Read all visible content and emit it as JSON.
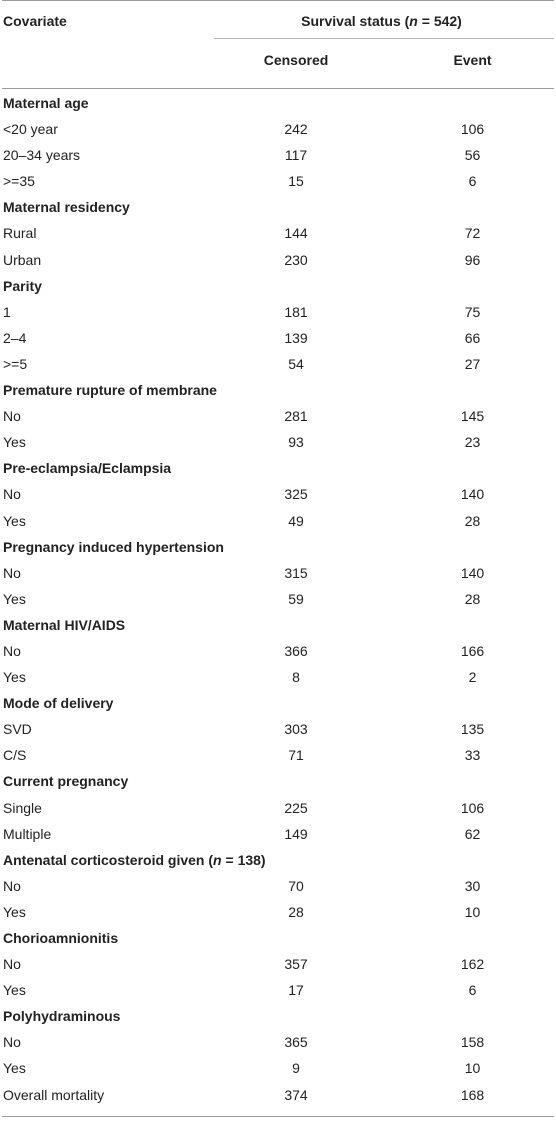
{
  "header": {
    "covariate": "Covariate",
    "survival_prefix": "Survival status (",
    "survival_n": "n",
    "survival_suffix": " = 542)",
    "censored": "Censored",
    "event": "Event"
  },
  "rows": [
    {
      "label": "Maternal age",
      "section": true
    },
    {
      "label": "<20 year",
      "censored": "242",
      "event": "106"
    },
    {
      "label": "20–34 years",
      "censored": "117",
      "event": "56"
    },
    {
      "label": ">=35",
      "censored": "15",
      "event": "6"
    },
    {
      "label": "Maternal residency",
      "section": true
    },
    {
      "label": "Rural",
      "censored": "144",
      "event": "72"
    },
    {
      "label": "Urban",
      "censored": "230",
      "event": "96"
    },
    {
      "label": "Parity",
      "section": true
    },
    {
      "label": "1",
      "censored": "181",
      "event": "75"
    },
    {
      "label": "2–4",
      "censored": "139",
      "event": "66"
    },
    {
      "label": ">=5",
      "censored": "54",
      "event": "27"
    },
    {
      "label": "Premature rupture of membrane",
      "section": true
    },
    {
      "label": "No",
      "censored": "281",
      "event": "145"
    },
    {
      "label": "Yes",
      "censored": "93",
      "event": "23"
    },
    {
      "label": "Pre-eclampsia/Eclampsia",
      "section": true
    },
    {
      "label": "No",
      "censored": "325",
      "event": "140"
    },
    {
      "label": "Yes",
      "censored": "49",
      "event": "28"
    },
    {
      "label": "Pregnancy induced hypertension",
      "section": true
    },
    {
      "label": "No",
      "censored": "315",
      "event": "140"
    },
    {
      "label": "Yes",
      "censored": "59",
      "event": "28"
    },
    {
      "label": "Maternal HIV/AIDS",
      "section": true
    },
    {
      "label": "No",
      "censored": "366",
      "event": "166"
    },
    {
      "label": "Yes",
      "censored": "8",
      "event": "2"
    },
    {
      "label": "Mode of delivery",
      "section": true
    },
    {
      "label": "SVD",
      "censored": "303",
      "event": "135"
    },
    {
      "label": "C/S",
      "censored": "71",
      "event": "33"
    },
    {
      "label": "Current pregnancy",
      "section": true
    },
    {
      "label": "Single",
      "censored": "225",
      "event": "106"
    },
    {
      "label": "Multiple",
      "censored": "149",
      "event": "62"
    },
    {
      "label": "Antenatal corticosteroid given (",
      "label_n": "n",
      "label_suffix": " = 138)",
      "section": true
    },
    {
      "label": "No",
      "censored": "70",
      "event": "30"
    },
    {
      "label": "Yes",
      "censored": "28",
      "event": "10"
    },
    {
      "label": "Chorioamnionitis",
      "section": true
    },
    {
      "label": "No",
      "censored": "357",
      "event": "162"
    },
    {
      "label": "Yes",
      "censored": "17",
      "event": "6"
    },
    {
      "label": "Polyhydraminous",
      "section": true
    },
    {
      "label": "No",
      "censored": "365",
      "event": "158"
    },
    {
      "label": "Yes",
      "censored": "9",
      "event": "10"
    },
    {
      "label": "Overall mortality",
      "censored": "374",
      "event": "168"
    }
  ]
}
